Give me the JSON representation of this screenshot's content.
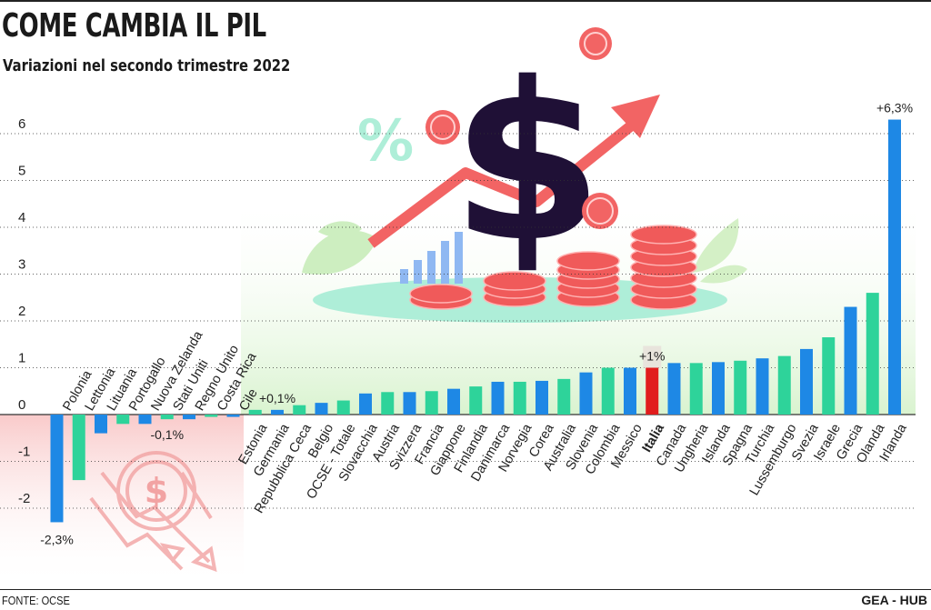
{
  "header": {
    "title": "COME CAMBIA IL PIL",
    "subtitle": "Variazioni nel secondo trimestre 2022"
  },
  "footer": {
    "source": "FONTE: OCSE",
    "credit": "GEA - HUB"
  },
  "colors": {
    "blue": "#1e88e5",
    "green": "#2ed39a",
    "highlight": "#e11d1d",
    "grid": "#333333",
    "positive_bg": "#e4f7dc",
    "negative_bg": "#fbdada"
  },
  "chart_data": {
    "type": "bar",
    "title": "COME CAMBIA IL PIL",
    "subtitle": "Variazioni nel secondo trimestre 2022",
    "xlabel": "",
    "ylabel": "",
    "ylim": [
      -2.5,
      6.5
    ],
    "yticks": [
      -2,
      -1,
      0,
      1,
      2,
      3,
      4,
      5,
      6
    ],
    "grid": true,
    "highlight_category": "Italia",
    "categories": [
      "Polonia",
      "Lettonia",
      "Lituania",
      "Portogallo",
      "Nuova Zelanda",
      "Stati Uniti",
      "Regno Unito",
      "Costa Rica",
      "Cile",
      "Estonia",
      "Germania",
      "Repubblica Ceca",
      "Belgio",
      "OCSE - Totale",
      "Slovacchia",
      "Austria",
      "Svizzera",
      "Francia",
      "Giappone",
      "Finlandia",
      "Danimarca",
      "Norvegia",
      "Corea",
      "Australia",
      "Slovenia",
      "Colombia",
      "Messico",
      "Italia",
      "Canada",
      "Ungheria",
      "Islanda",
      "Spagna",
      "Turchia",
      "Lussemburgo",
      "Svezia",
      "Israele",
      "Grecia",
      "Olanda",
      "Irlanda"
    ],
    "values": [
      -2.3,
      -1.4,
      -0.4,
      -0.2,
      -0.2,
      -0.1,
      -0.1,
      -0.05,
      -0.05,
      0.1,
      0.1,
      0.2,
      0.25,
      0.3,
      0.45,
      0.48,
      0.48,
      0.5,
      0.55,
      0.6,
      0.7,
      0.7,
      0.72,
      0.76,
      0.9,
      1.0,
      1.0,
      1.0,
      1.1,
      1.1,
      1.12,
      1.15,
      1.2,
      1.25,
      1.4,
      1.65,
      2.3,
      2.6,
      6.3
    ],
    "bar_colors": [
      "blue",
      "green",
      "blue",
      "green",
      "blue",
      "green",
      "blue",
      "green",
      "blue",
      "green",
      "blue",
      "green",
      "blue",
      "green",
      "blue",
      "green",
      "blue",
      "green",
      "blue",
      "green",
      "blue",
      "green",
      "blue",
      "green",
      "blue",
      "green",
      "blue",
      "red",
      "blue",
      "green",
      "blue",
      "green",
      "blue",
      "green",
      "blue",
      "green",
      "blue",
      "green",
      "blue"
    ],
    "data_labels": [
      {
        "category": "Polonia",
        "text": "-2,3%"
      },
      {
        "category": "Stati Uniti",
        "text": "-0,1%"
      },
      {
        "category": "Germania",
        "text": "+0,1%"
      },
      {
        "category": "Italia",
        "text": "+1%"
      },
      {
        "category": "Irlanda",
        "text": "+6,3%"
      }
    ]
  }
}
